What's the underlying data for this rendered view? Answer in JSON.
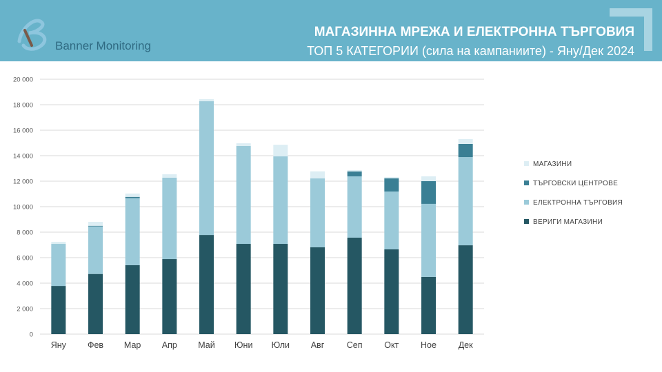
{
  "header": {
    "brand": "Banner Monitoring",
    "title": "МАГАЗИННА МРЕЖА И ЕЛЕКТРОННА ТЪРГОВИЯ",
    "subtitle": "ТОП 5 КАТЕГОРИИ (сила на кампаниите) - Яну/Дек 2024"
  },
  "chart_data": {
    "type": "bar",
    "stacked": true,
    "categories": [
      "Яну",
      "Фев",
      "Мар",
      "Апр",
      "Май",
      "Юни",
      "Юли",
      "Авг",
      "Сеп",
      "Окт",
      "Ное",
      "Дек"
    ],
    "ylim": [
      0,
      20000
    ],
    "yticks": [
      "0",
      "2 000",
      "4 000",
      "6 000",
      "8 000",
      "10 000",
      "12 000",
      "14 000",
      "16 000",
      "18 000",
      "20 000"
    ],
    "legend_position": "right",
    "series": [
      {
        "name": "ВЕРИГИ МАГАЗИНИ",
        "color": "#255763",
        "values": [
          3780,
          4720,
          5410,
          5890,
          7780,
          7080,
          7080,
          6810,
          7570,
          6650,
          4490,
          6970
        ]
      },
      {
        "name": "ЕЛЕКТРОННА ТЪРГОВИЯ",
        "color": "#9bcad9",
        "values": [
          3300,
          3730,
          5260,
          6380,
          10490,
          7680,
          6870,
          5410,
          4810,
          4540,
          5730,
          6920
        ]
      },
      {
        "name": "ТЪРГОВСКИ ЦЕНТРОВЕ",
        "color": "#3a7f94",
        "values": [
          0,
          50,
          100,
          0,
          0,
          0,
          0,
          0,
          390,
          1040,
          1780,
          1030
        ]
      },
      {
        "name": "МАГАЗИНИ",
        "color": "#ddeef4",
        "values": [
          160,
          310,
          260,
          270,
          160,
          210,
          910,
          550,
          90,
          80,
          380,
          380
        ]
      }
    ]
  }
}
